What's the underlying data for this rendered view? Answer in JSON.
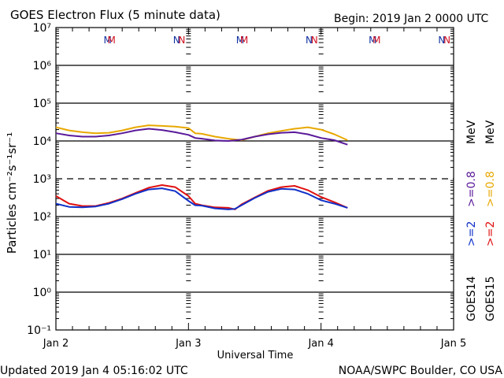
{
  "header": {
    "title": "GOES Electron Flux (5 minute data)",
    "begin": "Begin: 2019 Jan 2 0000 UTC"
  },
  "footer": {
    "updated": "Updated 2019 Jan  4 05:16:02 UTC",
    "source": "NOAA/SWPC Boulder, CO USA"
  },
  "colors": {
    "goes14_e08": "#5a1a9a",
    "goes15_e08": "#e8a800",
    "goes14_e2": "#1030c8",
    "goes15_e2": "#e01010",
    "marker_goes14": "#1030a0",
    "marker_goes15": "#d01020"
  },
  "chart_data": {
    "type": "line",
    "title": "GOES Electron Flux (5 minute data)",
    "xlabel": "Universal Time",
    "ylabel": "Particles cm⁻²s⁻¹sr⁻¹",
    "yscale": "log",
    "ylim_exp": [
      -1,
      7
    ],
    "ytick_labels": [
      "10⁻¹",
      "10⁰",
      "10¹",
      "10²",
      "10³",
      "10⁴",
      "10⁵",
      "10⁶",
      "10⁷"
    ],
    "ytick_exps": [
      -1,
      0,
      1,
      2,
      3,
      4,
      5,
      6,
      7
    ],
    "threshold_dashed_exp": 3,
    "xlim_days": [
      0,
      3
    ],
    "xtick_labels": [
      "Jan 2",
      "Jan 3",
      "Jan 4",
      "Jan 5"
    ],
    "xtick_days": [
      0,
      1,
      2,
      3
    ],
    "legend_placement": "right-vertical",
    "legend": [
      {
        "text": "GOES14",
        "color": "#000000"
      },
      {
        "text": ">=2",
        "color": "#1030c8"
      },
      {
        "text": ">=0.8",
        "color": "#5a1a9a"
      },
      {
        "text": "MeV",
        "color": "#000000"
      },
      {
        "text": "GOES15",
        "color": "#000000"
      },
      {
        "text": ">=2",
        "color": "#e01010"
      },
      {
        "text": ">=0.8",
        "color": "#e8a800"
      },
      {
        "text": "MeV",
        "color": "#000000"
      }
    ],
    "markers": [
      {
        "label": "M",
        "day": 0.39,
        "sat": "GOES14"
      },
      {
        "label": "M",
        "day": 0.42,
        "sat": "GOES15"
      },
      {
        "label": "N",
        "day": 0.91,
        "sat": "GOES14"
      },
      {
        "label": "N",
        "day": 0.95,
        "sat": "GOES15"
      },
      {
        "label": "M",
        "day": 1.39,
        "sat": "GOES14"
      },
      {
        "label": "M",
        "day": 1.42,
        "sat": "GOES15"
      },
      {
        "label": "N",
        "day": 1.91,
        "sat": "GOES14"
      },
      {
        "label": "N",
        "day": 1.95,
        "sat": "GOES15"
      },
      {
        "label": "M",
        "day": 2.39,
        "sat": "GOES14"
      },
      {
        "label": "M",
        "day": 2.42,
        "sat": "GOES15"
      },
      {
        "label": "N",
        "day": 2.91,
        "sat": "GOES14"
      },
      {
        "label": "N",
        "day": 2.95,
        "sat": "GOES15"
      }
    ],
    "series": [
      {
        "name": "GOES15 >=0.8 MeV",
        "color": "#e8a800",
        "x_days": [
          0,
          0.1,
          0.2,
          0.3,
          0.4,
          0.5,
          0.6,
          0.7,
          0.8,
          0.9,
          1.0,
          1.05,
          1.1,
          1.2,
          1.3,
          1.4,
          1.5,
          1.6,
          1.7,
          1.8,
          1.9,
          2.0,
          2.1,
          2.2
        ],
        "y": [
          23000,
          19000,
          17000,
          16000,
          16500,
          19000,
          23000,
          26000,
          25000,
          24000,
          22000,
          16000,
          15500,
          13000,
          11500,
          10500,
          13000,
          16000,
          18500,
          21000,
          23000,
          20000,
          15000,
          10500
        ]
      },
      {
        "name": "GOES14 >=0.8 MeV",
        "color": "#5a1a9a",
        "x_days": [
          0,
          0.1,
          0.2,
          0.3,
          0.4,
          0.5,
          0.6,
          0.7,
          0.8,
          0.9,
          1.0,
          1.05,
          1.1,
          1.2,
          1.3,
          1.4,
          1.5,
          1.6,
          1.7,
          1.8,
          1.9,
          2.0,
          2.1,
          2.2
        ],
        "y": [
          16000,
          14000,
          13000,
          13000,
          14000,
          16000,
          19000,
          21000,
          19500,
          17000,
          14500,
          12000,
          11500,
          10300,
          10000,
          10800,
          13000,
          15000,
          16500,
          17000,
          15000,
          12000,
          10500,
          8000
        ]
      },
      {
        "name": "GOES15 >=2 MeV",
        "color": "#e01010",
        "x_days": [
          0,
          0.1,
          0.2,
          0.3,
          0.4,
          0.5,
          0.6,
          0.7,
          0.8,
          0.9,
          1.0,
          1.05,
          1.1,
          1.2,
          1.3,
          1.35,
          1.4,
          1.5,
          1.6,
          1.7,
          1.8,
          1.9,
          2.0,
          2.1,
          2.2
        ],
        "y": [
          350,
          220,
          190,
          190,
          230,
          300,
          420,
          580,
          680,
          600,
          350,
          220,
          200,
          175,
          170,
          155,
          210,
          320,
          480,
          600,
          650,
          500,
          330,
          240,
          170
        ]
      },
      {
        "name": "GOES14 >=2 MeV",
        "color": "#1030c8",
        "x_days": [
          0,
          0.1,
          0.2,
          0.3,
          0.4,
          0.5,
          0.6,
          0.7,
          0.8,
          0.9,
          1.0,
          1.05,
          1.1,
          1.2,
          1.3,
          1.35,
          1.4,
          1.5,
          1.6,
          1.7,
          1.8,
          1.9,
          2.0,
          2.1,
          2.2
        ],
        "y": [
          220,
          180,
          175,
          185,
          220,
          290,
          400,
          520,
          560,
          470,
          260,
          200,
          195,
          165,
          155,
          160,
          200,
          310,
          450,
          540,
          520,
          400,
          270,
          220,
          170
        ]
      }
    ]
  }
}
